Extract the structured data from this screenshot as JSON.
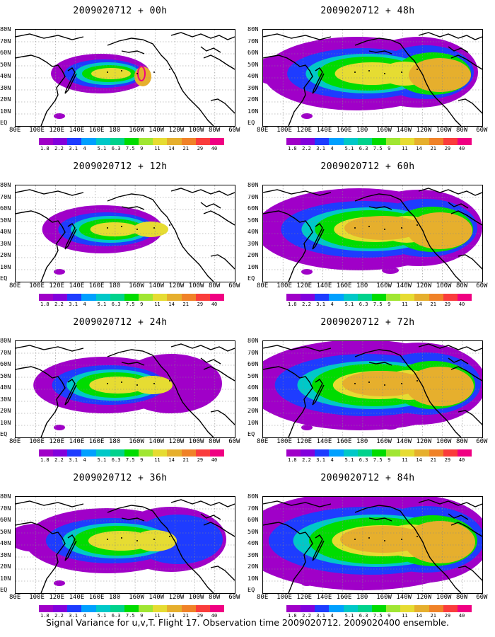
{
  "panels": [
    {
      "title": "2009020712 + 00h",
      "col": 0,
      "row": 0,
      "stage": 0
    },
    {
      "title": "2009020712 + 12h",
      "col": 0,
      "row": 1,
      "stage": 1
    },
    {
      "title": "2009020712 + 24h",
      "col": 0,
      "row": 2,
      "stage": 2
    },
    {
      "title": "2009020712 + 36h",
      "col": 0,
      "row": 3,
      "stage": 3
    },
    {
      "title": "2009020712 + 48h",
      "col": 1,
      "row": 0,
      "stage": 4
    },
    {
      "title": "2009020712 + 60h",
      "col": 1,
      "row": 1,
      "stage": 5
    },
    {
      "title": "2009020712 + 72h",
      "col": 1,
      "row": 2,
      "stage": 6
    },
    {
      "title": "2009020712 + 84h",
      "col": 1,
      "row": 3,
      "stage": 7
    }
  ],
  "axes": {
    "lat_labels": [
      "80N",
      "70N",
      "60N",
      "50N",
      "40N",
      "30N",
      "20N",
      "10N",
      "EQ"
    ],
    "lon_labels": [
      "80E",
      "100E",
      "120E",
      "140E",
      "160E",
      "180",
      "160W",
      "140W",
      "120W",
      "100W",
      "80W",
      "60W"
    ]
  },
  "colorbar": {
    "levels": [
      "1.8",
      "2.2",
      "3.1",
      "4",
      "5.1",
      "6.3",
      "7.5",
      "9",
      "11",
      "14",
      "21",
      "29",
      "40"
    ],
    "colors": [
      "#a000c8",
      "#8200dc",
      "#1e3cff",
      "#00a0ff",
      "#00c8c8",
      "#00d28c",
      "#00dc00",
      "#a0e632",
      "#e6dc32",
      "#e6af2d",
      "#f08228",
      "#fa3c3c",
      "#f00082"
    ]
  },
  "footer": "Signal Variance for u,v,T. Flight 17. Observation time 2009020712. 2009020400 ensemble."
}
